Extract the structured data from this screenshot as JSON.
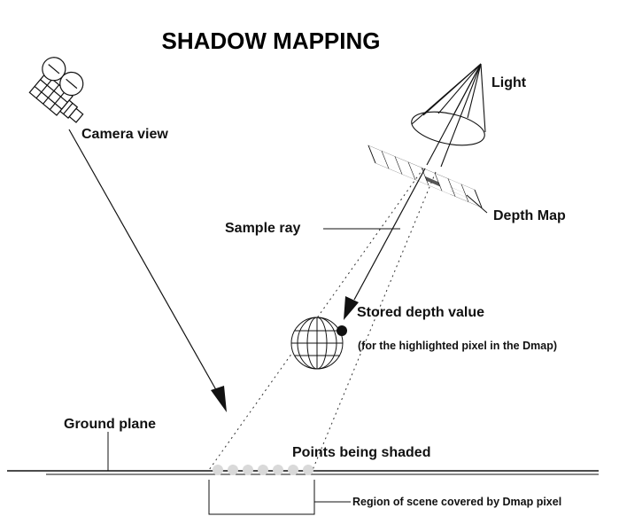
{
  "title": "SHADOW MAPPING",
  "labels": {
    "camera": "Camera view",
    "light": "Light",
    "sample_ray": "Sample ray",
    "depth_map": "Depth Map",
    "stored_depth": "Stored depth value",
    "stored_depth_note": "(for the highlighted pixel in the Dmap)",
    "ground_plane": "Ground plane",
    "points_shaded": "Points being shaded",
    "region": "Region of scene covered by Dmap pixel"
  },
  "shaded_point_count": 7,
  "colors": {
    "ink": "#111111",
    "shaded_point": "#d9d9d9",
    "highlight_pixel": "#555555"
  }
}
